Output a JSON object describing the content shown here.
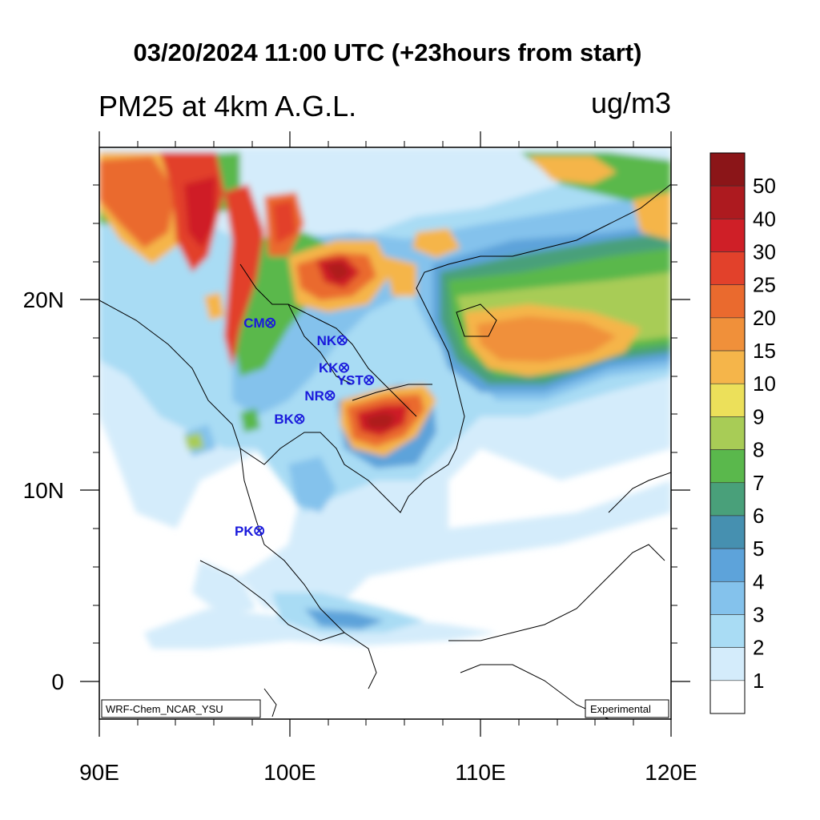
{
  "header": {
    "title": "03/20/2024 11:00 UTC (+23hours from start)",
    "variable": "PM25 at 4km A.G.L.",
    "units": "ug/m3"
  },
  "axes": {
    "x_ticks": [
      "90E",
      "100E",
      "110E",
      "120E"
    ],
    "y_ticks": [
      "20N",
      "10N",
      "0"
    ],
    "lon_range": [
      90,
      120
    ],
    "lat_range": [
      -2,
      28
    ]
  },
  "stations": [
    {
      "label": "CM",
      "lon": 98.98,
      "lat": 18.79
    },
    {
      "label": "NK",
      "lon": 102.74,
      "lat": 17.88
    },
    {
      "label": "KK",
      "lon": 102.84,
      "lat": 16.44
    },
    {
      "label": "YST",
      "lon": 104.15,
      "lat": 15.79
    },
    {
      "label": "NR",
      "lon": 102.1,
      "lat": 14.98
    },
    {
      "label": "BK",
      "lon": 100.5,
      "lat": 13.75
    },
    {
      "label": "PK",
      "lon": 98.39,
      "lat": 7.88
    }
  ],
  "credits": {
    "model": "WRF-Chem_NCAR_YSU",
    "status": "Experimental"
  },
  "colorbar": {
    "labels": [
      "50",
      "40",
      "30",
      "25",
      "20",
      "15",
      "10",
      "9",
      "8",
      "7",
      "6",
      "5",
      "4",
      "3",
      "2",
      "1"
    ],
    "colors": [
      "#8b1518",
      "#ad1a1f",
      "#cf1f27",
      "#e2412b",
      "#ea6a2e",
      "#f0903a",
      "#f5b54a",
      "#ece05a",
      "#a8cc56",
      "#5ab84c",
      "#49a07a",
      "#4690b0",
      "#5da3da",
      "#84c2ec",
      "#a9dcf4",
      "#d4ecfb",
      "#ffffff"
    ]
  }
}
